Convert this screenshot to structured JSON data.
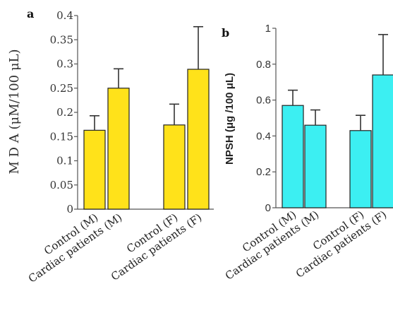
{
  "chart_data": [
    {
      "panel": "a",
      "type": "bar",
      "categories": [
        "Control (M)",
        "Cardiac patients (M)",
        "Control (F)",
        "Cardiac patients (F)"
      ],
      "values": [
        0.163,
        0.25,
        0.174,
        0.289
      ],
      "errors": [
        0.03,
        0.04,
        0.043,
        0.088
      ],
      "ylabel": "M D A (μM/100 μL)",
      "ylim": [
        0,
        0.4
      ],
      "yticks": [
        0,
        0.05,
        0.1,
        0.15,
        0.2,
        0.25,
        0.3,
        0.35,
        0.4
      ],
      "ytick_labels": [
        "0",
        "0.05",
        "0.1",
        "0.15",
        "0.2",
        "0.25",
        "0.3",
        "0.35",
        "0.4"
      ],
      "bar_color": "#FFE21A",
      "grid": false
    },
    {
      "panel": "b",
      "type": "bar",
      "categories": [
        "Control (M)",
        "Cardiac patients (M)",
        "Control (F)",
        "Cardiac patients (F)"
      ],
      "values": [
        0.57,
        0.46,
        0.43,
        0.74
      ],
      "errors": [
        0.085,
        0.085,
        0.085,
        0.225
      ],
      "ylabel": "NPSH (μg /100 μL)",
      "ylim": [
        0,
        1
      ],
      "yticks": [
        0,
        0.2,
        0.4,
        0.6,
        0.8,
        1
      ],
      "ytick_labels": [
        "0",
        "0.2",
        "0.4",
        "0.6",
        "0.8",
        "1"
      ],
      "bar_color": "#3CEFF2",
      "grid": false
    }
  ]
}
